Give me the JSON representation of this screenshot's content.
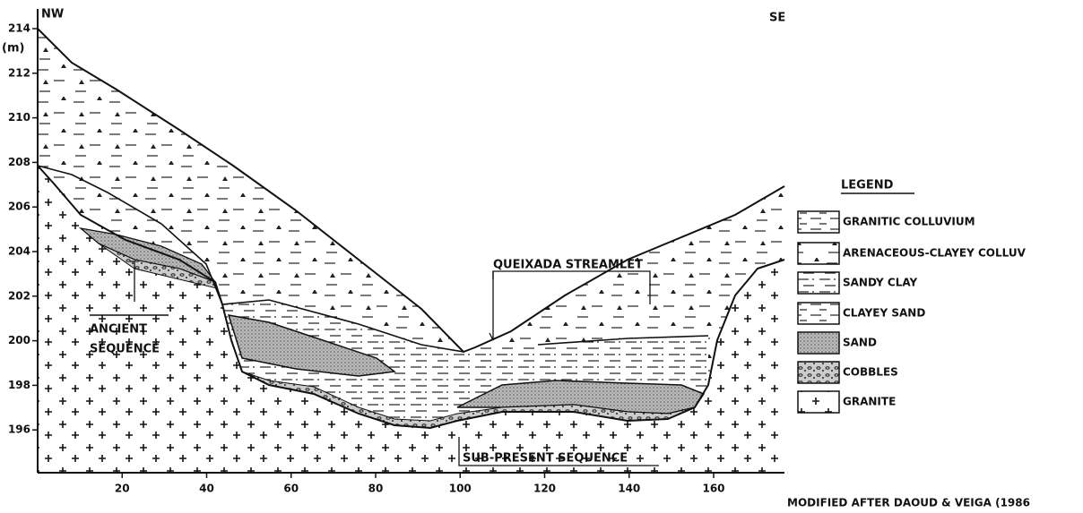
{
  "axes": {
    "y_ticks": [
      214,
      212,
      210,
      208,
      206,
      204,
      202,
      200,
      198,
      196
    ],
    "y_unit": "(m)",
    "x_ticks": [
      20,
      40,
      60,
      80,
      100,
      120,
      140,
      160
    ]
  },
  "directions": {
    "left": "NW",
    "right": "SE"
  },
  "annotations": {
    "ancient": [
      "ANCIENT",
      "SEQUENCE"
    ],
    "streamlet": "QUEIXADA STREAMLET",
    "sub_present": "SUB-PRESENT SEQUENCE"
  },
  "legend": {
    "title": "LEGEND",
    "items": [
      "GRANITIC COLLUVIUM",
      "ARENACEOUS-CLAYEY COLLUV",
      "SANDY CLAY",
      "CLAYEY SAND",
      "SAND",
      "COBBLES",
      "GRANITE"
    ]
  },
  "credit": "MODIFIED AFTER DAOUD & VEIGA (1986"
}
